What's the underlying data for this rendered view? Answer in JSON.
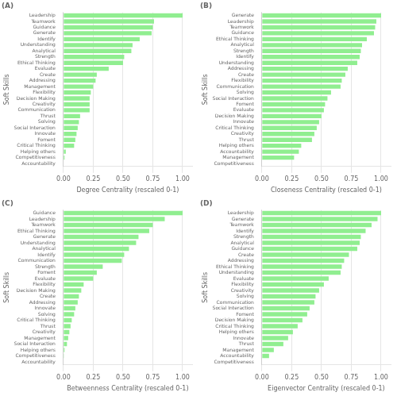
{
  "chart_data": [
    {
      "type": "bar",
      "orientation": "horizontal",
      "title": "(A)",
      "xlabel": "Degree Centrality (rescaled 0-1)",
      "ylabel": "Soft Skills",
      "categories": [
        "Leadership",
        "Teamwork",
        "Guidance",
        "Generate",
        "Identify",
        "Understanding",
        "Analytical",
        "Strength",
        "Ethical Thinking",
        "Evaluate",
        "Create",
        "Addressing",
        "Management",
        "Flexibility",
        "Decision Making",
        "Creativity",
        "Communication",
        "Thrust",
        "Solving",
        "Social Interaction",
        "Innovate",
        "Foment",
        "Critical Thinking",
        "Helping others",
        "Competitiveness",
        "Accountability"
      ],
      "values": [
        1.0,
        0.76,
        0.75,
        0.74,
        0.64,
        0.58,
        0.57,
        0.51,
        0.5,
        0.38,
        0.28,
        0.27,
        0.25,
        0.23,
        0.22,
        0.22,
        0.22,
        0.14,
        0.13,
        0.12,
        0.11,
        0.1,
        0.09,
        0.02,
        0.01,
        0.0
      ],
      "color": "#90EE90",
      "xlim": [
        0,
        1.08
      ],
      "xticks": [
        {
          "value": 0,
          "label": "0.00"
        },
        0.25,
        {
          "value": 0.5,
          "label": "0.50"
        },
        0.75,
        {
          "value": 1,
          "label": "1.00"
        }
      ],
      "grid": true
    },
    {
      "type": "bar",
      "orientation": "horizontal",
      "title": "(B)",
      "xlabel": "Closeness Centrality (rescaled 0-1)",
      "ylabel": "Soft Skills",
      "categories": [
        "Generate",
        "Leadership",
        "Teamwork",
        "Guidance",
        "Ethical Thinking",
        "Analytical",
        "Strength",
        "Identify",
        "Understanding",
        "Addressing",
        "Create",
        "Flexibility",
        "Communication",
        "Solving",
        "Social Interaction",
        "Foment",
        "Evaluate",
        "Decision Making",
        "Innovate",
        "Critical Thinking",
        "Creativity",
        "Thrust",
        "Helping others",
        "Accountability",
        "Management",
        "Competitiveness"
      ],
      "values": [
        1.0,
        0.96,
        0.95,
        0.94,
        0.88,
        0.84,
        0.83,
        0.82,
        0.8,
        0.72,
        0.7,
        0.67,
        0.66,
        0.58,
        0.55,
        0.53,
        0.52,
        0.5,
        0.48,
        0.46,
        0.44,
        0.42,
        0.33,
        0.31,
        0.27,
        0.0
      ],
      "color": "#90EE90",
      "xlim": [
        0,
        1.08
      ],
      "xticks": [
        {
          "value": 0,
          "label": "0.00"
        },
        0.25,
        {
          "value": 0.5,
          "label": "0.50"
        },
        0.75,
        {
          "value": 1,
          "label": "1.00"
        }
      ],
      "grid": true
    },
    {
      "type": "bar",
      "orientation": "horizontal",
      "title": "(C)",
      "xlabel": "Betweenness Centrality (rescaled 0-1)",
      "ylabel": "Soft Skills",
      "categories": [
        "Guidance",
        "Leadership",
        "Teamwork",
        "Ethical Thinking",
        "Generate",
        "Understanding",
        "Analytical",
        "Identify",
        "Communication",
        "Strength",
        "Foment",
        "Evaluate",
        "Flexibility",
        "Decision Making",
        "Create",
        "Addressing",
        "Innovate",
        "Solving",
        "Critical Thinking",
        "Thrust",
        "Creativity",
        "Management",
        "Social Interaction",
        "Helping others",
        "Competitiveness",
        "Accountability"
      ],
      "values": [
        1.0,
        0.85,
        0.75,
        0.72,
        0.63,
        0.61,
        0.55,
        0.51,
        0.49,
        0.33,
        0.28,
        0.25,
        0.17,
        0.15,
        0.13,
        0.12,
        0.1,
        0.09,
        0.07,
        0.06,
        0.05,
        0.04,
        0.03,
        0.01,
        0.005,
        0.0
      ],
      "color": "#90EE90",
      "xlim": [
        0,
        1.08
      ],
      "xticks": [
        {
          "value": 0,
          "label": "0.00"
        },
        0.25,
        {
          "value": 0.5,
          "label": "0.50"
        },
        0.75,
        {
          "value": 1,
          "label": "1.00"
        }
      ],
      "grid": true
    },
    {
      "type": "bar",
      "orientation": "horizontal",
      "title": "(D)",
      "xlabel": "Eigenvector Centrality (rescaled 0-1)",
      "ylabel": "Soft Skills",
      "categories": [
        "Leadership",
        "Generate",
        "Teamwork",
        "Identify",
        "Strength",
        "Analytical",
        "Guidance",
        "Create",
        "Addressing",
        "Ethical Thinking",
        "Understanding",
        "Evaluate",
        "Flexibility",
        "Creativity",
        "Solving",
        "Communication",
        "Social Interaction",
        "Foment",
        "Decision Making",
        "Critical Thinking",
        "Helping others",
        "Innovate",
        "Thrust",
        "Management",
        "Accountability",
        "Competitiveness"
      ],
      "values": [
        1.0,
        0.97,
        0.92,
        0.87,
        0.83,
        0.82,
        0.8,
        0.73,
        0.69,
        0.67,
        0.66,
        0.56,
        0.52,
        0.48,
        0.45,
        0.44,
        0.4,
        0.38,
        0.34,
        0.3,
        0.26,
        0.22,
        0.18,
        0.1,
        0.06,
        0.0
      ],
      "color": "#90EE90",
      "xlim": [
        0,
        1.08
      ],
      "xticks": [
        {
          "value": 0,
          "label": "0.00"
        },
        0.25,
        {
          "value": 0.5,
          "label": "0.50"
        },
        0.75,
        {
          "value": 1,
          "label": "1.00"
        }
      ],
      "grid": true
    }
  ]
}
